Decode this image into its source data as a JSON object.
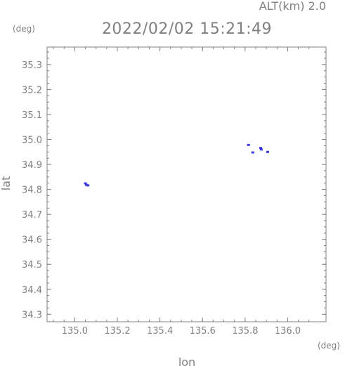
{
  "chart_data": {
    "type": "scatter",
    "title": "2022/02/02 15:21:49",
    "altitude_label": "ALT(km) 2.0",
    "xlabel": "lon",
    "ylabel": "lat",
    "x_unit": "(deg)",
    "y_unit": "(deg)",
    "xlim": [
      134.87,
      136.18
    ],
    "ylim": [
      34.27,
      35.37
    ],
    "x_ticks": [
      "135.0",
      "135.2",
      "135.4",
      "135.6",
      "135.8",
      "136.0"
    ],
    "y_ticks": [
      "34.3",
      "34.4",
      "34.5",
      "34.6",
      "34.7",
      "34.8",
      "34.9",
      "35.0",
      "35.1",
      "35.2",
      "35.3"
    ],
    "grid": false,
    "marker_color": "#3a3ae0",
    "axis_color": "#808080",
    "points": [
      {
        "x": 135.05,
        "y": 34.824
      },
      {
        "x": 135.055,
        "y": 34.818
      },
      {
        "x": 135.062,
        "y": 34.816
      },
      {
        "x": 135.816,
        "y": 34.978
      },
      {
        "x": 135.836,
        "y": 34.948
      },
      {
        "x": 135.873,
        "y": 34.966
      },
      {
        "x": 135.876,
        "y": 34.96
      },
      {
        "x": 135.906,
        "y": 34.95
      }
    ]
  }
}
